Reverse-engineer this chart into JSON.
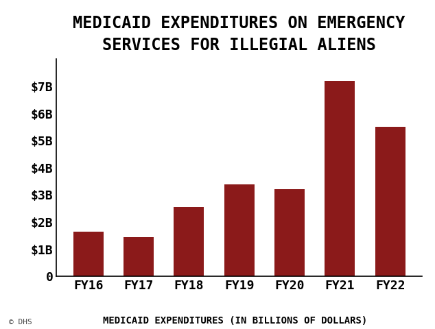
{
  "title_line1": "MEDICAID EXPENDITURES ON EMERGENCY",
  "title_line2": "SERVICES FOR ILLEGIAL ALIENS",
  "xlabel": "MEDICAID EXPENDITURES (IN BILLIONS OF DOLLARS)",
  "categories": [
    "FY16",
    "FY17",
    "FY18",
    "FY19",
    "FY20",
    "FY21",
    "FY22"
  ],
  "values": [
    1.65,
    1.45,
    2.55,
    3.4,
    3.2,
    7.2,
    5.5
  ],
  "bar_color": "#8B1A1A",
  "background_color": "#ffffff",
  "chart_bg_color": "#ffffff",
  "title_fontsize": 17,
  "xlabel_fontsize": 10,
  "tick_fontsize": 13,
  "ylim": [
    0,
    8
  ],
  "yticks": [
    0,
    1,
    2,
    3,
    4,
    5,
    6,
    7
  ],
  "ytick_labels": [
    "0",
    "$1B",
    "$2B",
    "$3B",
    "$4B",
    "$5B",
    "$6B",
    "$7B"
  ],
  "watermark": "© DHS",
  "watermark_fontsize": 8
}
